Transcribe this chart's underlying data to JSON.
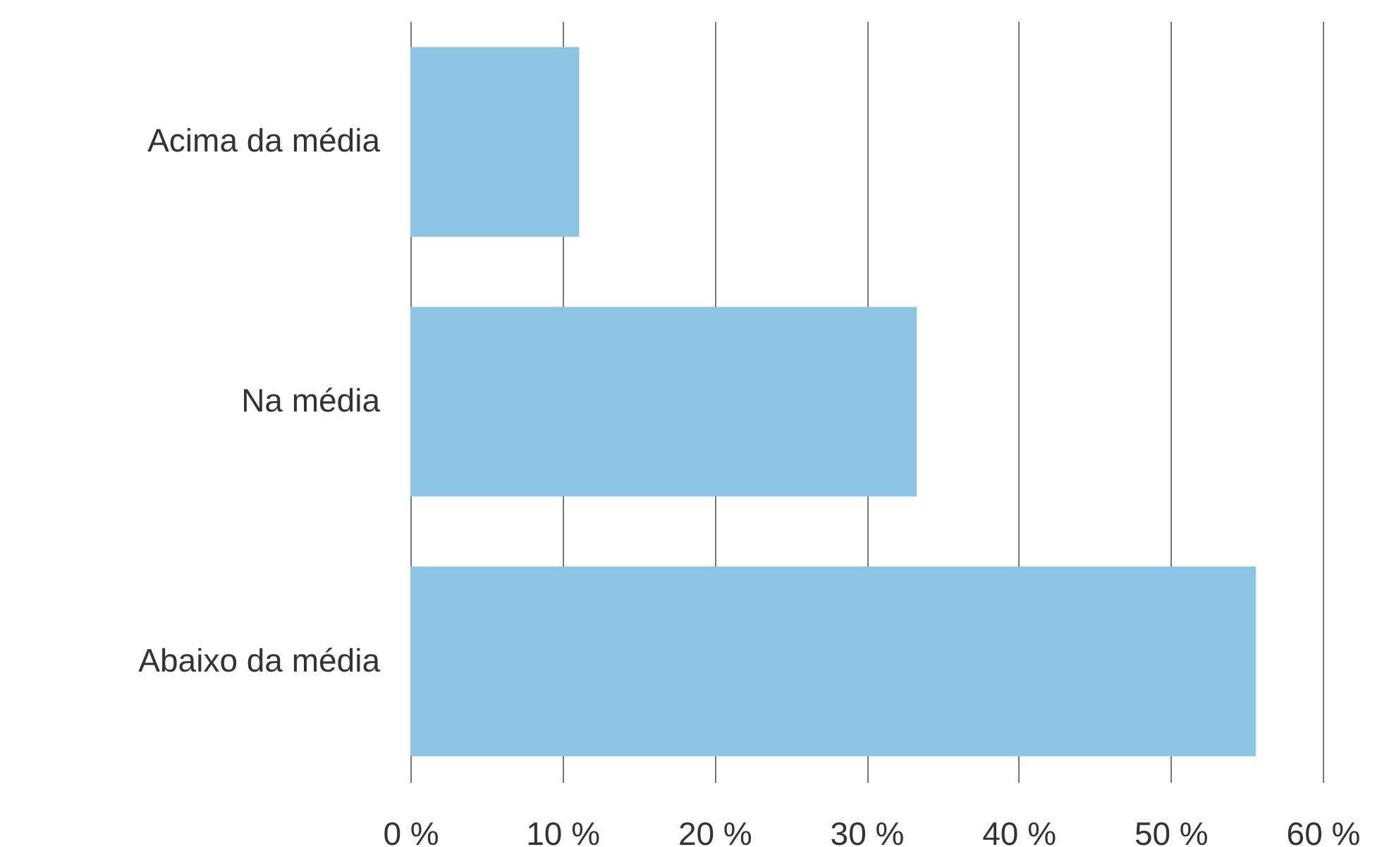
{
  "chart_data": {
    "type": "bar",
    "orientation": "horizontal",
    "categories": [
      "Acima da média",
      "Na média",
      "Abaixo da média"
    ],
    "values": [
      11.1,
      33.3,
      55.6
    ],
    "color": "#8ec5e5",
    "xlim": [
      0,
      60
    ],
    "xticks": [
      {
        "value": 0,
        "label": "0 %"
      },
      {
        "value": 10,
        "label": "10 %"
      },
      {
        "value": 20,
        "label": "20 %"
      },
      {
        "value": 30,
        "label": "30 %"
      },
      {
        "value": 40,
        "label": "40 %"
      },
      {
        "value": 50,
        "label": "50 %"
      },
      {
        "value": 60,
        "label": "60 %"
      }
    ],
    "grid": "x"
  }
}
